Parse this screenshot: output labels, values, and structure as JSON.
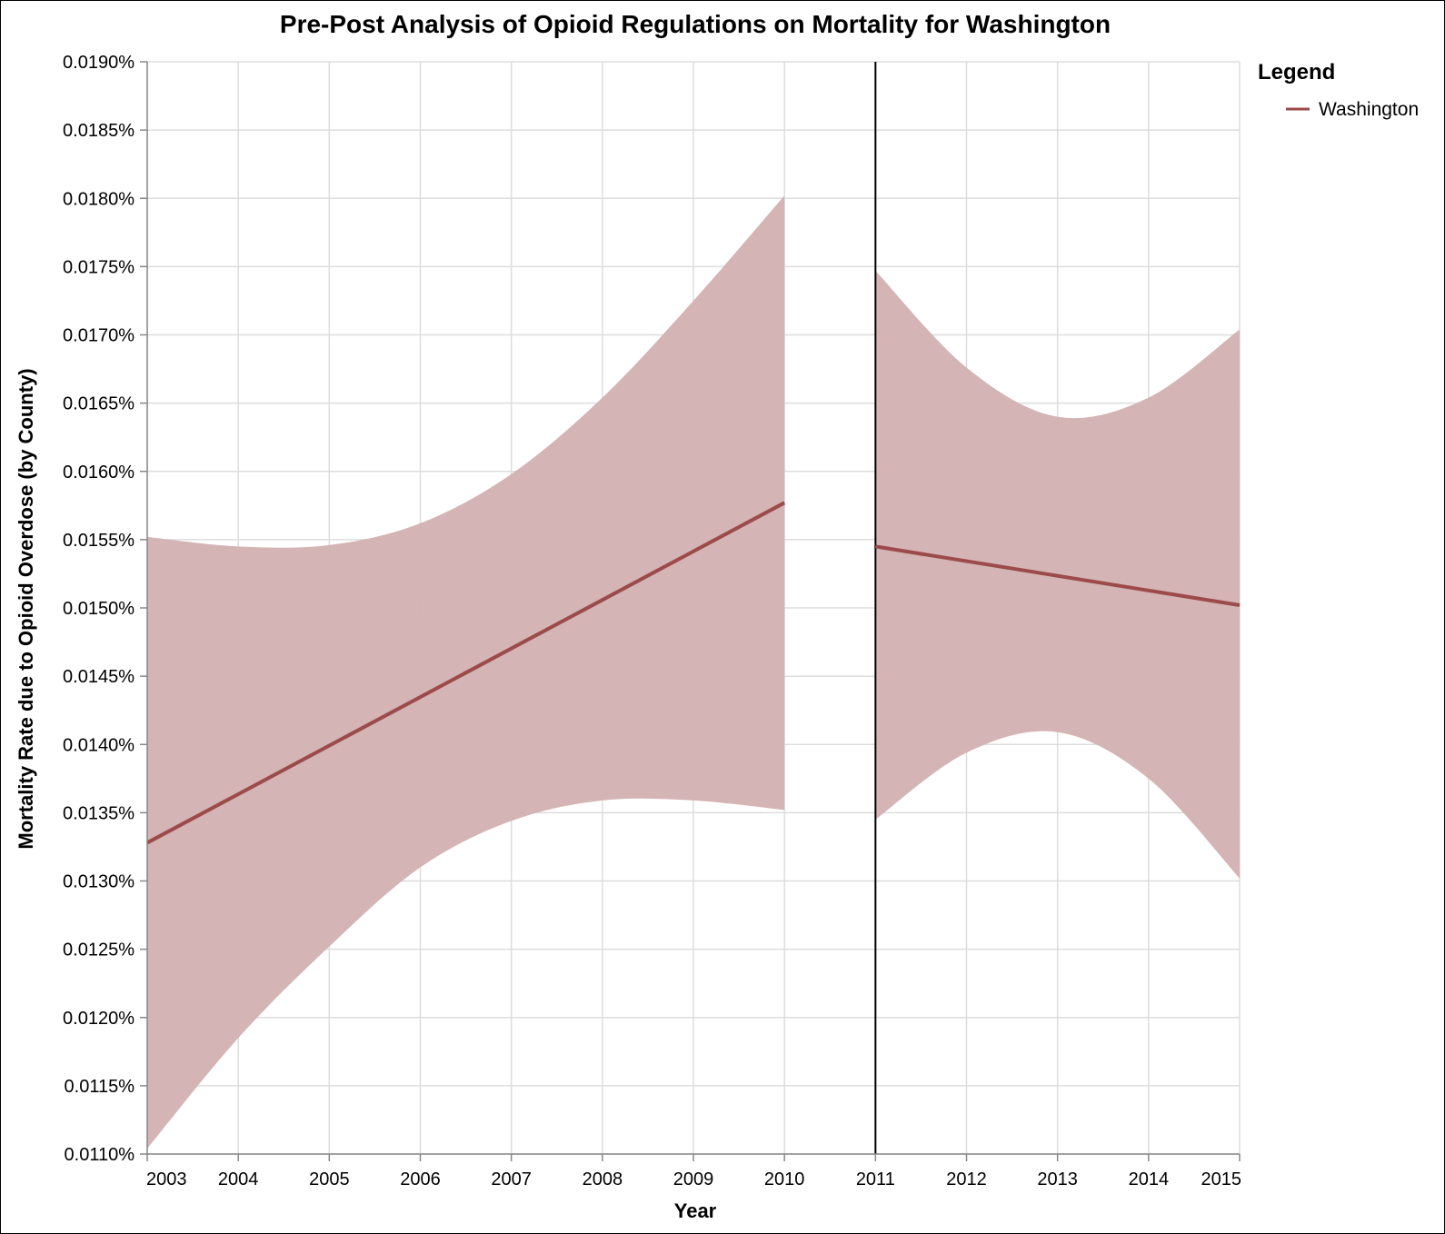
{
  "chart_data": {
    "type": "line",
    "title": "Pre-Post Analysis of Opioid Regulations on Mortality for Washington",
    "xlabel": "Year",
    "ylabel": "Mortality Rate due to Opioid Overdose (by County)",
    "x_ticks": [
      "2003",
      "2004",
      "2005",
      "2006",
      "2007",
      "2008",
      "2009",
      "2010",
      "2011",
      "2012",
      "2013",
      "2014",
      "2015"
    ],
    "y_ticks": [
      "0.0110%",
      "0.0115%",
      "0.0120%",
      "0.0125%",
      "0.0130%",
      "0.0135%",
      "0.0140%",
      "0.0145%",
      "0.0150%",
      "0.0155%",
      "0.0160%",
      "0.0165%",
      "0.0170%",
      "0.0175%",
      "0.0180%",
      "0.0185%",
      "0.0190%"
    ],
    "xlim": [
      2003,
      2015
    ],
    "ylim": [
      0.011,
      0.019
    ],
    "y_unit": "%",
    "grid": true,
    "legend_position": "top-right",
    "legend": {
      "title": "Legend",
      "entries": [
        "Washington"
      ]
    },
    "policy_year": 2011,
    "colors": {
      "series": "#9c4a4a",
      "band": "#d2b0b0",
      "policy_line": "#000000",
      "grid": "#dddddd",
      "axis": "#888888"
    },
    "series": [
      {
        "name": "Washington",
        "segment": "pre",
        "x": [
          2003,
          2010
        ],
        "y": [
          0.01328,
          0.01577
        ],
        "band_x": [
          2003,
          2004,
          2005,
          2006,
          2007,
          2008,
          2009,
          2010
        ],
        "band_upper": [
          0.01552,
          0.01545,
          0.01546,
          0.01562,
          0.01598,
          0.01654,
          0.01725,
          0.01802
        ],
        "band_lower": [
          0.01104,
          0.01185,
          0.01252,
          0.0131,
          0.01344,
          0.01359,
          0.01359,
          0.01352
        ]
      },
      {
        "name": "Washington",
        "segment": "post",
        "x": [
          2011,
          2015
        ],
        "y": [
          0.01545,
          0.01502
        ],
        "band_x": [
          2011,
          2012,
          2013,
          2014,
          2015
        ],
        "band_upper": [
          0.01747,
          0.01676,
          0.0164,
          0.01654,
          0.01704
        ],
        "band_lower": [
          0.01345,
          0.01394,
          0.01409,
          0.01375,
          0.01302
        ]
      }
    ]
  }
}
